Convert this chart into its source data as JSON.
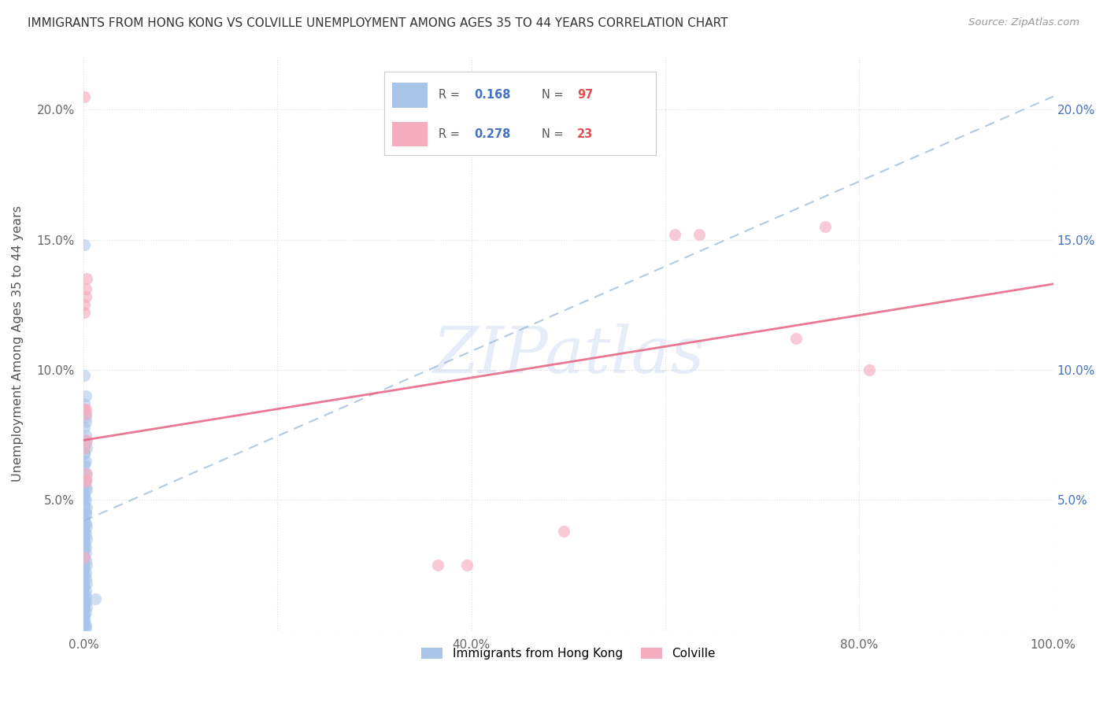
{
  "title": "IMMIGRANTS FROM HONG KONG VS COLVILLE UNEMPLOYMENT AMONG AGES 35 TO 44 YEARS CORRELATION CHART",
  "source": "Source: ZipAtlas.com",
  "ylabel": "Unemployment Among Ages 35 to 44 years",
  "xlim": [
    0,
    1.0
  ],
  "ylim": [
    0,
    0.22
  ],
  "xticks": [
    0.0,
    0.2,
    0.4,
    0.6,
    0.8,
    1.0
  ],
  "xticklabels": [
    "0.0%",
    "",
    "40.0%",
    "",
    "80.0%",
    "100.0%"
  ],
  "yticks": [
    0.0,
    0.05,
    0.1,
    0.15,
    0.2
  ],
  "ytick_labels": [
    "",
    "5.0%",
    "10.0%",
    "15.0%",
    "20.0%"
  ],
  "legend_blue_r": "0.168",
  "legend_blue_n": "97",
  "legend_pink_r": "0.278",
  "legend_pink_n": "23",
  "blue_color": "#a8c4e8",
  "pink_color": "#f4aec0",
  "blue_line_color": "#9ab8d8",
  "pink_line_color": "#e86080",
  "blue_trend_x": [
    0.0,
    1.0
  ],
  "blue_trend_y": [
    0.042,
    0.205
  ],
  "pink_trend_x": [
    0.0,
    1.0
  ],
  "pink_trend_y": [
    0.073,
    0.133
  ],
  "watermark": "ZIPatlas",
  "watermark_color": "#c8d8f0",
  "background_color": "#ffffff",
  "grid_color": "#dddddd",
  "blue_scatter_x": [
    0.001,
    0.001,
    0.002,
    0.001,
    0.002,
    0.002,
    0.001,
    0.003,
    0.001,
    0.002,
    0.001,
    0.002,
    0.002,
    0.001,
    0.003,
    0.001,
    0.002,
    0.001,
    0.003,
    0.002,
    0.001,
    0.002,
    0.003,
    0.001,
    0.002,
    0.003,
    0.001,
    0.002,
    0.002,
    0.001,
    0.002,
    0.003,
    0.001,
    0.002,
    0.001,
    0.002,
    0.003,
    0.001,
    0.002,
    0.001,
    0.002,
    0.001,
    0.002,
    0.001,
    0.003,
    0.001,
    0.002,
    0.001,
    0.001,
    0.001,
    0.001,
    0.001,
    0.002,
    0.001,
    0.002,
    0.001,
    0.002,
    0.001,
    0.002,
    0.001,
    0.001,
    0.001,
    0.002,
    0.001,
    0.001,
    0.001,
    0.002,
    0.001,
    0.001,
    0.001,
    0.001,
    0.001,
    0.001,
    0.0,
    0.0,
    0.0,
    0.0,
    0.0,
    0.0,
    0.0,
    0.0,
    0.0,
    0.0,
    0.0,
    0.0,
    0.0,
    0.0,
    0.0,
    0.0,
    0.0,
    0.0,
    0.0,
    0.0,
    0.0,
    0.001,
    0.012
  ],
  "blue_scatter_y": [
    0.148,
    0.098,
    0.09,
    0.083,
    0.08,
    0.075,
    0.073,
    0.07,
    0.068,
    0.065,
    0.063,
    0.06,
    0.058,
    0.056,
    0.054,
    0.052,
    0.05,
    0.048,
    0.047,
    0.045,
    0.043,
    0.041,
    0.04,
    0.038,
    0.037,
    0.035,
    0.033,
    0.032,
    0.03,
    0.028,
    0.027,
    0.025,
    0.024,
    0.022,
    0.021,
    0.02,
    0.018,
    0.017,
    0.015,
    0.014,
    0.013,
    0.012,
    0.011,
    0.01,
    0.009,
    0.008,
    0.007,
    0.006,
    0.005,
    0.004,
    0.003,
    0.002,
    0.002,
    0.001,
    0.001,
    0.087,
    0.082,
    0.078,
    0.072,
    0.068,
    0.064,
    0.06,
    0.055,
    0.053,
    0.05,
    0.047,
    0.045,
    0.042,
    0.04,
    0.038,
    0.036,
    0.034,
    0.032,
    0.055,
    0.05,
    0.045,
    0.04,
    0.035,
    0.03,
    0.025,
    0.022,
    0.018,
    0.015,
    0.012,
    0.01,
    0.008,
    0.005,
    0.003,
    0.03,
    0.027,
    0.024,
    0.02,
    0.017,
    0.013,
    0.01,
    0.012
  ],
  "pink_scatter_x": [
    0.001,
    0.002,
    0.002,
    0.001,
    0.001,
    0.003,
    0.001,
    0.002,
    0.002,
    0.003,
    0.001,
    0.003,
    0.002,
    0.001,
    0.002,
    0.365,
    0.395,
    0.61,
    0.635,
    0.735,
    0.765,
    0.81,
    0.495
  ],
  "pink_scatter_y": [
    0.205,
    0.131,
    0.128,
    0.125,
    0.122,
    0.135,
    0.085,
    0.085,
    0.083,
    0.073,
    0.07,
    0.06,
    0.057,
    0.028,
    0.058,
    0.025,
    0.025,
    0.152,
    0.152,
    0.112,
    0.155,
    0.1,
    0.038
  ]
}
